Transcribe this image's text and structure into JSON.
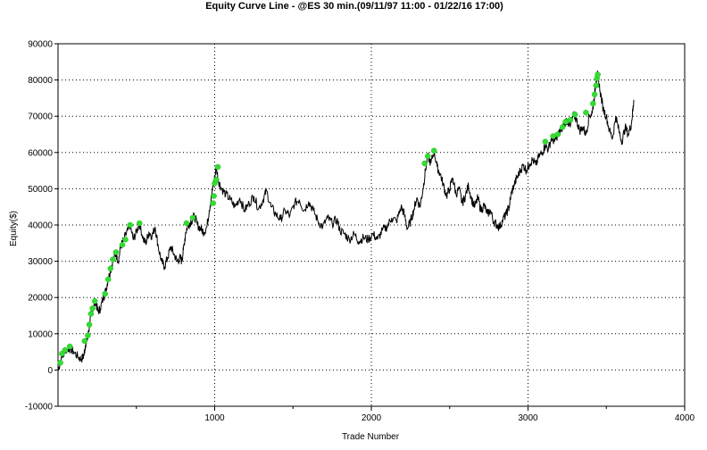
{
  "chart_data": {
    "type": "line",
    "title": "Equity Curve Line - @ES 30 min.(09/11/97 11:00 - 01/22/16 17:00)",
    "xlabel": "Trade Number",
    "ylabel": "Equity($)",
    "xlim": [
      0,
      4000
    ],
    "ylim": [
      -10000,
      90000
    ],
    "xticks": [
      1000,
      2000,
      3000,
      4000
    ],
    "yticks": [
      -10000,
      0,
      10000,
      20000,
      30000,
      40000,
      50000,
      60000,
      70000,
      80000,
      90000
    ],
    "grid": true,
    "colors": {
      "line": "#000000",
      "new_high_marker": "#33dd33",
      "background": "#ffffff"
    },
    "series": [
      {
        "values": [
          [
            0,
            0
          ],
          [
            20,
            3000
          ],
          [
            40,
            5000
          ],
          [
            70,
            6000
          ],
          [
            100,
            5000
          ],
          [
            130,
            3500
          ],
          [
            150,
            3000
          ],
          [
            165,
            4000
          ],
          [
            175,
            7000
          ],
          [
            190,
            9000
          ],
          [
            200,
            12000
          ],
          [
            210,
            15000
          ],
          [
            225,
            17500
          ],
          [
            240,
            19000
          ],
          [
            255,
            16000
          ],
          [
            270,
            17000
          ],
          [
            290,
            20000
          ],
          [
            305,
            22000
          ],
          [
            320,
            25000
          ],
          [
            335,
            27500
          ],
          [
            350,
            30000
          ],
          [
            370,
            32000
          ],
          [
            385,
            30000
          ],
          [
            400,
            34000
          ],
          [
            420,
            36000
          ],
          [
            445,
            38500
          ],
          [
            460,
            40000
          ],
          [
            480,
            36000
          ],
          [
            500,
            38000
          ],
          [
            520,
            40500
          ],
          [
            545,
            36000
          ],
          [
            560,
            35000
          ],
          [
            580,
            38000
          ],
          [
            600,
            37000
          ],
          [
            620,
            39500
          ],
          [
            640,
            34000
          ],
          [
            660,
            30000
          ],
          [
            680,
            28500
          ],
          [
            700,
            31000
          ],
          [
            720,
            34000
          ],
          [
            740,
            32000
          ],
          [
            760,
            30000
          ],
          [
            780,
            31000
          ],
          [
            790,
            30000
          ],
          [
            800,
            33000
          ],
          [
            815,
            38000
          ],
          [
            830,
            40000
          ],
          [
            850,
            41000
          ],
          [
            870,
            42500
          ],
          [
            890,
            40000
          ],
          [
            910,
            39000
          ],
          [
            930,
            38000
          ],
          [
            950,
            39500
          ],
          [
            965,
            44000
          ],
          [
            980,
            48000
          ],
          [
            990,
            51000
          ],
          [
            1000,
            53000
          ],
          [
            1010,
            56000
          ],
          [
            1025,
            52000
          ],
          [
            1045,
            50000
          ],
          [
            1070,
            48500
          ],
          [
            1100,
            47000
          ],
          [
            1130,
            45000
          ],
          [
            1160,
            47500
          ],
          [
            1190,
            44000
          ],
          [
            1220,
            46000
          ],
          [
            1250,
            48000
          ],
          [
            1280,
            44500
          ],
          [
            1310,
            47000
          ],
          [
            1330,
            49500
          ],
          [
            1360,
            45000
          ],
          [
            1390,
            43000
          ],
          [
            1420,
            41500
          ],
          [
            1450,
            44000
          ],
          [
            1480,
            42500
          ],
          [
            1510,
            46000
          ],
          [
            1540,
            47000
          ],
          [
            1570,
            44000
          ],
          [
            1600,
            46500
          ],
          [
            1630,
            44000
          ],
          [
            1660,
            41000
          ],
          [
            1690,
            39500
          ],
          [
            1720,
            42000
          ],
          [
            1750,
            40500
          ],
          [
            1780,
            41500
          ],
          [
            1800,
            38500
          ],
          [
            1830,
            37500
          ],
          [
            1860,
            36000
          ],
          [
            1890,
            37500
          ],
          [
            1920,
            35500
          ],
          [
            1950,
            36500
          ],
          [
            1980,
            36000
          ],
          [
            2010,
            37500
          ],
          [
            2040,
            36000
          ],
          [
            2070,
            38500
          ],
          [
            2100,
            39500
          ],
          [
            2130,
            42000
          ],
          [
            2160,
            41000
          ],
          [
            2190,
            45000
          ],
          [
            2210,
            43000
          ],
          [
            2230,
            39000
          ],
          [
            2250,
            41000
          ],
          [
            2270,
            44000
          ],
          [
            2290,
            47500
          ],
          [
            2310,
            45000
          ],
          [
            2330,
            50000
          ],
          [
            2345,
            55000
          ],
          [
            2360,
            59000
          ],
          [
            2380,
            57000
          ],
          [
            2400,
            60500
          ],
          [
            2420,
            56000
          ],
          [
            2440,
            54000
          ],
          [
            2460,
            51000
          ],
          [
            2480,
            48000
          ],
          [
            2500,
            50000
          ],
          [
            2520,
            53000
          ],
          [
            2540,
            48500
          ],
          [
            2560,
            50000
          ],
          [
            2580,
            46000
          ],
          [
            2600,
            48000
          ],
          [
            2620,
            51000
          ],
          [
            2640,
            47000
          ],
          [
            2660,
            45000
          ],
          [
            2680,
            47500
          ],
          [
            2700,
            44000
          ],
          [
            2720,
            45500
          ],
          [
            2740,
            43000
          ],
          [
            2760,
            44000
          ],
          [
            2780,
            41000
          ],
          [
            2800,
            40000
          ],
          [
            2820,
            39500
          ],
          [
            2840,
            41500
          ],
          [
            2860,
            43000
          ],
          [
            2880,
            45000
          ],
          [
            2890,
            48000
          ],
          [
            2910,
            51000
          ],
          [
            2930,
            53000
          ],
          [
            2950,
            55000
          ],
          [
            2970,
            56500
          ],
          [
            2990,
            55000
          ],
          [
            3010,
            57000
          ],
          [
            3030,
            58000
          ],
          [
            3050,
            56500
          ],
          [
            3070,
            59000
          ],
          [
            3090,
            60000
          ],
          [
            3110,
            62000
          ],
          [
            3130,
            61000
          ],
          [
            3150,
            64000
          ],
          [
            3170,
            63000
          ],
          [
            3190,
            65000
          ],
          [
            3210,
            66000
          ],
          [
            3230,
            68000
          ],
          [
            3250,
            69000
          ],
          [
            3270,
            67000
          ],
          [
            3290,
            70500
          ],
          [
            3310,
            69000
          ],
          [
            3330,
            66000
          ],
          [
            3350,
            67000
          ],
          [
            3370,
            65000
          ],
          [
            3390,
            70000
          ],
          [
            3410,
            71000
          ],
          [
            3425,
            76000
          ],
          [
            3435,
            80000
          ],
          [
            3445,
            81500
          ],
          [
            3460,
            77000
          ],
          [
            3480,
            72000
          ],
          [
            3500,
            70000
          ],
          [
            3520,
            66000
          ],
          [
            3540,
            64000
          ],
          [
            3560,
            70000
          ],
          [
            3580,
            66000
          ],
          [
            3600,
            63000
          ],
          [
            3620,
            67000
          ],
          [
            3640,
            65000
          ],
          [
            3660,
            68000
          ],
          [
            3670,
            72000
          ],
          [
            3675,
            74500
          ]
        ]
      }
    ],
    "new_high_points": [
      [
        15,
        2000
      ],
      [
        25,
        4500
      ],
      [
        45,
        5500
      ],
      [
        75,
        6500
      ],
      [
        170,
        8000
      ],
      [
        190,
        9500
      ],
      [
        200,
        12500
      ],
      [
        210,
        15500
      ],
      [
        220,
        17000
      ],
      [
        235,
        19000
      ],
      [
        300,
        21000
      ],
      [
        320,
        25000
      ],
      [
        335,
        28000
      ],
      [
        350,
        30500
      ],
      [
        370,
        32500
      ],
      [
        410,
        34500
      ],
      [
        430,
        36000
      ],
      [
        460,
        40000
      ],
      [
        520,
        40500
      ],
      [
        820,
        40500
      ],
      [
        860,
        42000
      ],
      [
        990,
        46000
      ],
      [
        995,
        48000
      ],
      [
        1000,
        51500
      ],
      [
        1010,
        52500
      ],
      [
        1020,
        56000
      ],
      [
        2340,
        57000
      ],
      [
        2360,
        59000
      ],
      [
        2400,
        60500
      ],
      [
        3110,
        63000
      ],
      [
        3160,
        64500
      ],
      [
        3190,
        65000
      ],
      [
        3220,
        67000
      ],
      [
        3240,
        68500
      ],
      [
        3270,
        69000
      ],
      [
        3300,
        70500
      ],
      [
        3370,
        71000
      ],
      [
        3415,
        73500
      ],
      [
        3425,
        76000
      ],
      [
        3435,
        78500
      ],
      [
        3440,
        80500
      ],
      [
        3445,
        81500
      ]
    ]
  }
}
